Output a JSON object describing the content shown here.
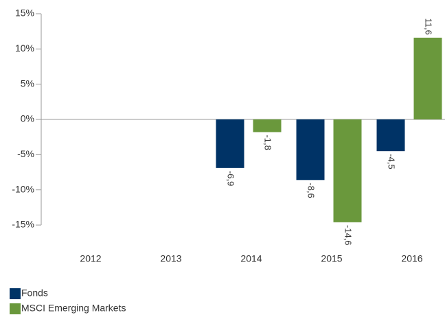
{
  "chart_data": {
    "type": "bar",
    "categories": [
      "2012",
      "2013",
      "2014",
      "2015",
      "2016"
    ],
    "series": [
      {
        "name": "Fonds",
        "color": "#003366",
        "values": [
          null,
          null,
          -6.9,
          -8.6,
          -4.5
        ],
        "value_labels": [
          null,
          null,
          "-6,9",
          "-8,6",
          "-4,5"
        ]
      },
      {
        "name": "MSCI Emerging Markets",
        "color": "#6a983c",
        "values": [
          null,
          null,
          -1.8,
          -14.6,
          11.6
        ],
        "value_labels": [
          null,
          null,
          "-1,8",
          "-14,6",
          "11,6"
        ]
      }
    ],
    "ylim": [
      -15,
      15
    ],
    "yticks": [
      {
        "value": 15,
        "label": "15%"
      },
      {
        "value": 10,
        "label": "10%"
      },
      {
        "value": 5,
        "label": "5%"
      },
      {
        "value": 0,
        "label": "0%"
      },
      {
        "value": -5,
        "label": "-5%"
      },
      {
        "value": -10,
        "label": "-10%"
      },
      {
        "value": -15,
        "label": "-15%"
      }
    ],
    "legend": "bottom-left"
  }
}
